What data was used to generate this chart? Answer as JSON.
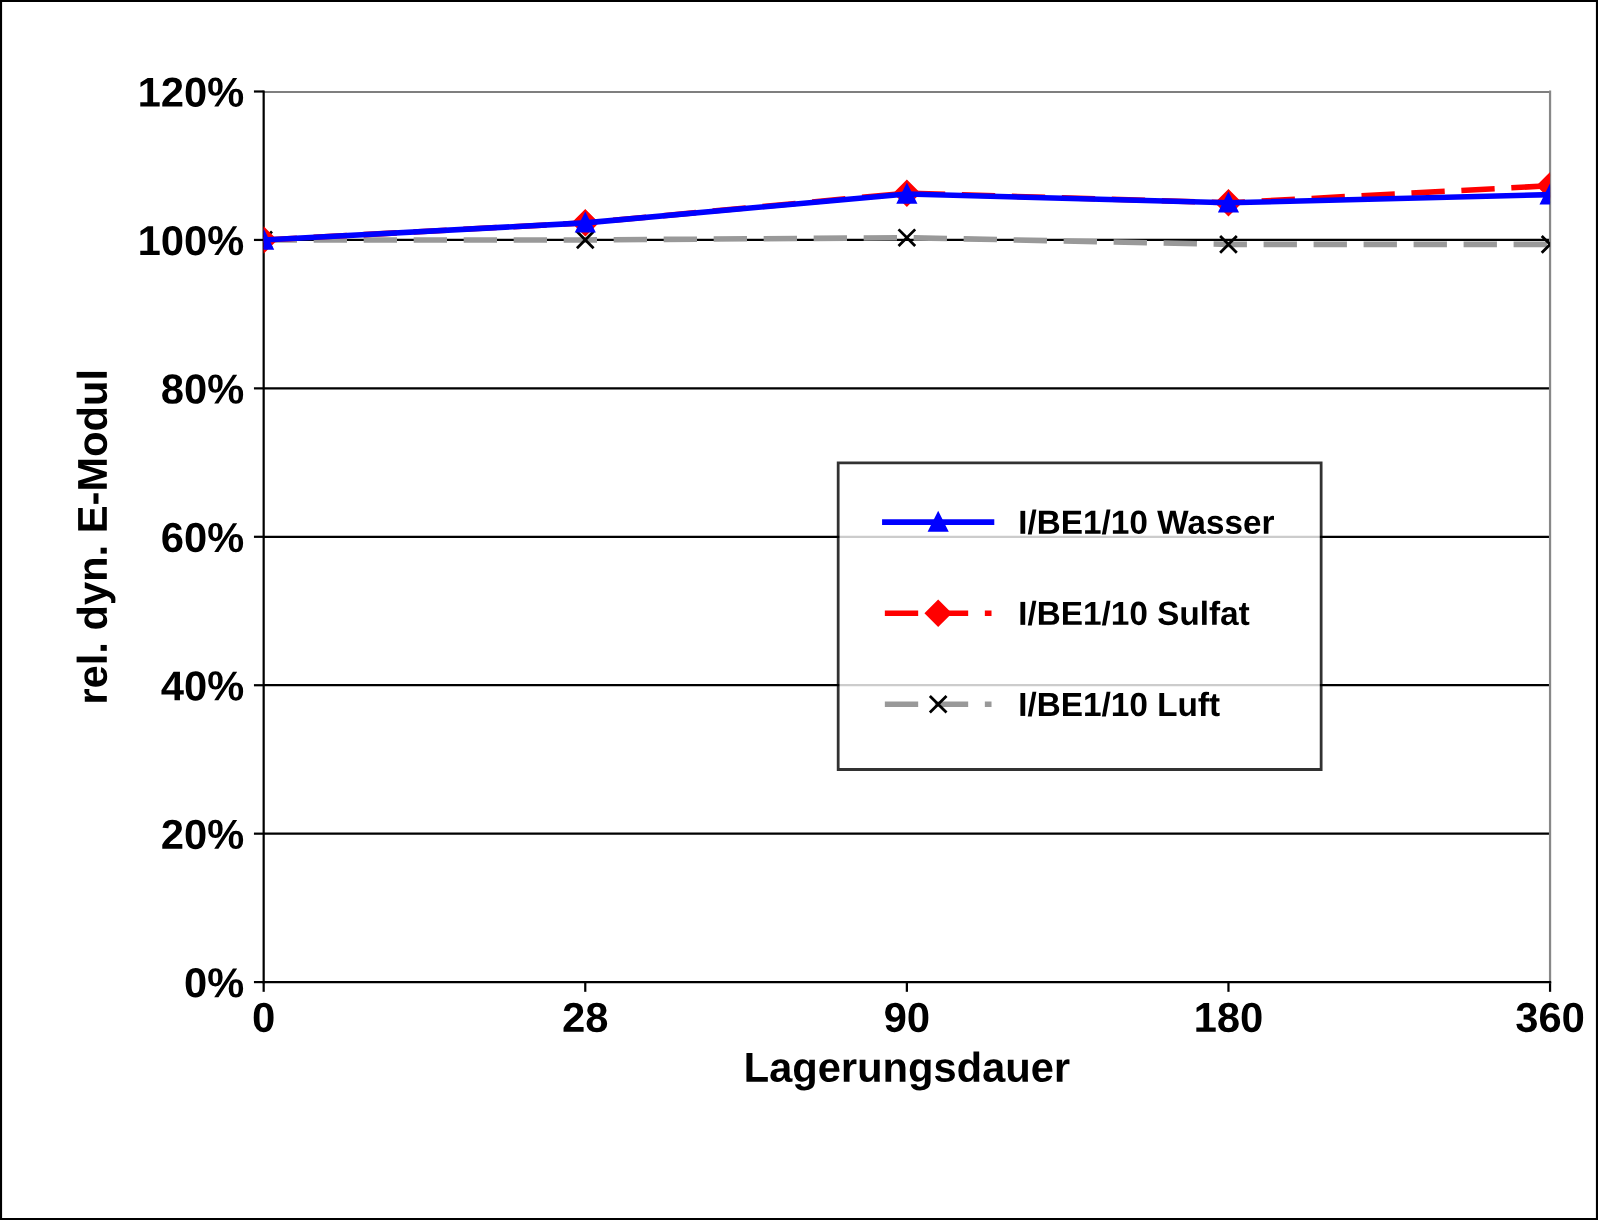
{
  "chart_data": {
    "type": "line",
    "xlabel": "Lagerungsdauer",
    "ylabel": "rel. dyn. E-Modul",
    "categories": [
      "0",
      "28",
      "90",
      "180",
      "360"
    ],
    "series": [
      {
        "name": "I/BE1/10 Wasser",
        "color": "#0000ff",
        "marker": "triangle",
        "line_style": "solid",
        "values": [
          100,
          102.3,
          106.2,
          105.0,
          106.1
        ]
      },
      {
        "name": "I/BE1/10 Sulfat",
        "color": "#ff0000",
        "marker": "diamond",
        "line_style": "dashed",
        "values": [
          100,
          102.3,
          106.3,
          105.0,
          107.3
        ]
      },
      {
        "name": "I/BE1/10 Luft",
        "color": "#999999",
        "marker": "cross",
        "line_style": "dashed",
        "values": [
          100,
          100,
          100.3,
          99.4,
          99.4
        ]
      }
    ],
    "ylim": [
      0,
      120
    ],
    "yticks": [
      {
        "value": 0,
        "label": "0%"
      },
      {
        "value": 20,
        "label": "20%"
      },
      {
        "value": 40,
        "label": "40%"
      },
      {
        "value": 60,
        "label": "60%"
      },
      {
        "value": 80,
        "label": "80%"
      },
      {
        "value": 100,
        "label": "100%"
      },
      {
        "value": 120,
        "label": "120%"
      }
    ],
    "grid": "y",
    "legend": "bottom right"
  }
}
